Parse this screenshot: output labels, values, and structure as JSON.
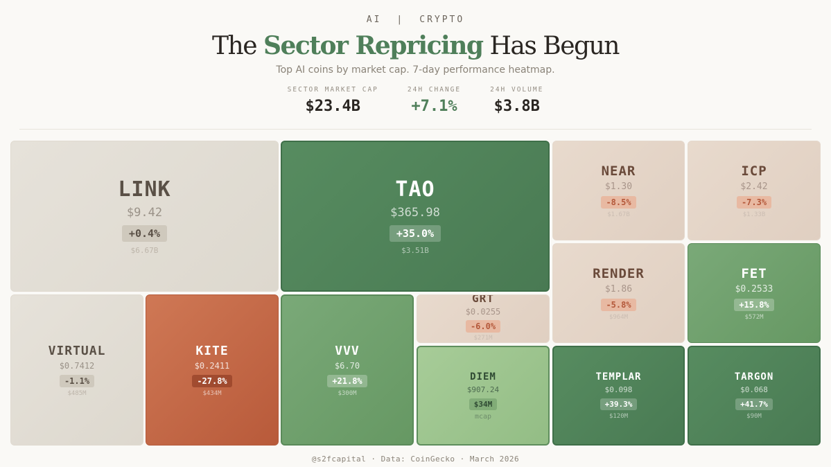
{
  "header": {
    "tag_left": "AI",
    "tag_sep": "|",
    "tag_right": "CRYPTO",
    "title_pre": "The ",
    "title_accent": "Sector Repricing",
    "title_post": " Has Begun",
    "subtitle": "Top AI coins by market cap. 7-day performance heatmap."
  },
  "stats": [
    {
      "label": "SECTOR MARKET CAP",
      "value": "$23.4B"
    },
    {
      "label": "24H CHANGE",
      "value": "+7.1%"
    },
    {
      "label": "24H VOLUME",
      "value": "$3.8B"
    }
  ],
  "colors": {
    "positive_strong": "#4f8058",
    "positive_mid": "#6e9e72",
    "positive_light": "#9ec48d",
    "neutral": "#e2ddd4",
    "negative_light": "#e4d3c6",
    "negative_strong": "#c76a48"
  },
  "chart_data": {
    "type": "treemap",
    "title": "The Sector Repricing Has Begun",
    "metric_size": "market cap",
    "metric_color": "7-day performance",
    "tiles": [
      {
        "symbol": "LINK",
        "price": "$9.42",
        "change": "+0.4%",
        "change_pct": 0.4,
        "mcap": "$6.67B"
      },
      {
        "symbol": "TAO",
        "price": "$365.98",
        "change": "+35.0%",
        "change_pct": 35.0,
        "mcap": "$3.51B"
      },
      {
        "symbol": "NEAR",
        "price": "$1.30",
        "change": "-8.5%",
        "change_pct": -8.5,
        "mcap": "$1.67B"
      },
      {
        "symbol": "ICP",
        "price": "$2.42",
        "change": "-7.3%",
        "change_pct": -7.3,
        "mcap": "$1.33B"
      },
      {
        "symbol": "RENDER",
        "price": "$1.86",
        "change": "-5.8%",
        "change_pct": -5.8,
        "mcap": "$964M"
      },
      {
        "symbol": "FET",
        "price": "$0.2533",
        "change": "+15.8%",
        "change_pct": 15.8,
        "mcap": "$572M"
      },
      {
        "symbol": "VIRTUAL",
        "price": "$0.7412",
        "change": "-1.1%",
        "change_pct": -1.1,
        "mcap": "$485M"
      },
      {
        "symbol": "KITE",
        "price": "$0.2411",
        "change": "-27.8%",
        "change_pct": -27.8,
        "mcap": "$434M"
      },
      {
        "symbol": "VVV",
        "price": "$6.70",
        "change": "+21.8%",
        "change_pct": 21.8,
        "mcap": "$300M"
      },
      {
        "symbol": "GRT",
        "price": "$0.0255",
        "change": "-6.0%",
        "change_pct": -6.0,
        "mcap": "$271M"
      },
      {
        "symbol": "DIEM",
        "price": "$907.24",
        "change": "$34M",
        "change_pct": null,
        "mcap": "mcap"
      },
      {
        "symbol": "TEMPLAR",
        "price": "$0.098",
        "change": "+39.3%",
        "change_pct": 39.3,
        "mcap": "$120M"
      },
      {
        "symbol": "TARGON",
        "price": "$0.068",
        "change": "+41.7%",
        "change_pct": 41.7,
        "mcap": "$90M"
      }
    ]
  },
  "footer": "@s2fcapital · Data: CoinGecko · March 2026"
}
